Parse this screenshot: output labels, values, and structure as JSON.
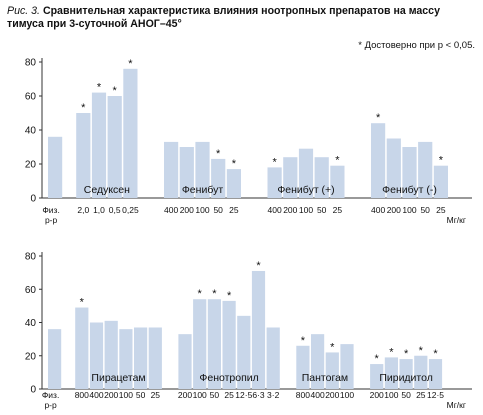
{
  "figure": {
    "label": "Рис. 3.",
    "title": "Сравнительная характеристика влияния ноотропных препаратов на массу тимуса при 3-суточной АНОГ–45°",
    "note": "* Достоверно при p < 0,05."
  },
  "colors": {
    "bar": "#c8d6e9",
    "axis": "#333333",
    "text": "#111111"
  },
  "chart_data": [
    {
      "type": "bar",
      "ylim": [
        0,
        80
      ],
      "yticks": [
        0,
        20,
        40,
        60,
        80
      ],
      "unit": "Мг/кг",
      "control": {
        "label": "Физ. р-р",
        "value": 36
      },
      "groups": [
        {
          "name": "Седуксен",
          "doses": [
            "2,0",
            "1,0",
            "0,5",
            "0,25"
          ],
          "values": [
            50,
            62,
            60,
            76
          ],
          "significant": [
            true,
            true,
            true,
            true
          ]
        },
        {
          "name": "Фенибут",
          "doses": [
            "400",
            "200",
            "100",
            "50",
            "25"
          ],
          "values": [
            33,
            30,
            33,
            23,
            17
          ],
          "significant": [
            false,
            false,
            false,
            true,
            true
          ]
        },
        {
          "name": "Фенибут (+)",
          "doses": [
            "400",
            "200",
            "100",
            "50",
            "25"
          ],
          "values": [
            18,
            24,
            29,
            24,
            19
          ],
          "significant": [
            true,
            false,
            false,
            false,
            true
          ]
        },
        {
          "name": "Фенибут (-)",
          "doses": [
            "400",
            "200",
            "100",
            "50",
            "25"
          ],
          "values": [
            44,
            35,
            30,
            33,
            19
          ],
          "significant": [
            true,
            false,
            false,
            false,
            true
          ]
        }
      ]
    },
    {
      "type": "bar",
      "ylim": [
        0,
        80
      ],
      "yticks": [
        0,
        20,
        40,
        60,
        80
      ],
      "unit": "Мг/кг",
      "control": {
        "label": "Физ. р-р",
        "value": 36
      },
      "groups": [
        {
          "name": "Пирацетам",
          "doses": [
            "800",
            "400",
            "200",
            "100",
            "50",
            "25"
          ],
          "values": [
            49,
            40,
            41,
            36,
            37,
            37
          ],
          "significant": [
            true,
            false,
            false,
            false,
            false,
            false
          ]
        },
        {
          "name": "Фенотропил",
          "doses": [
            "200",
            "100",
            "50",
            "25",
            "12·5",
            "6·3",
            "3·2"
          ],
          "values": [
            33,
            54,
            54,
            53,
            44,
            71,
            37
          ],
          "significant": [
            false,
            true,
            true,
            true,
            false,
            true,
            false
          ]
        },
        {
          "name": "Пантогам",
          "doses": [
            "800",
            "400",
            "200",
            "100"
          ],
          "values": [
            26,
            33,
            22,
            27
          ],
          "significant": [
            true,
            false,
            true,
            false
          ]
        },
        {
          "name": "Пиридитол",
          "doses": [
            "200",
            "100",
            "50",
            "25",
            "12·5"
          ],
          "values": [
            15,
            19,
            18,
            20,
            18
          ],
          "significant": [
            true,
            true,
            true,
            true,
            true
          ]
        }
      ]
    }
  ]
}
